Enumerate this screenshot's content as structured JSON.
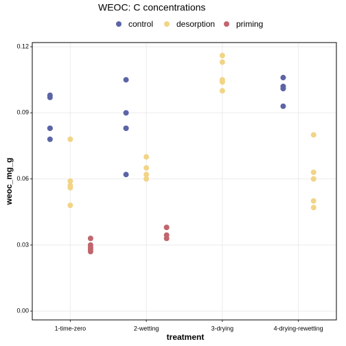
{
  "chart_data": {
    "type": "dotplot",
    "title": "WEOC: C concentrations",
    "x_label": "treatment",
    "y_label": "weoc_mg_g",
    "categories": [
      "1-time-zero",
      "2-wetting",
      "3-drying",
      "4-drying-rewetting"
    ],
    "ylim": [
      -0.004,
      0.1219
    ],
    "yticks": [
      {
        "value": 0,
        "label": "0.00"
      },
      0.03,
      0.06,
      0.09,
      0.12
    ],
    "grid": true,
    "legend": "top",
    "series": [
      {
        "name": "control",
        "color": "#5b64a6",
        "x": [
          "1-time-zero",
          "1-time-zero",
          "1-time-zero",
          "1-time-zero",
          "1-time-zero",
          "2-wetting",
          "2-wetting",
          "2-wetting",
          "2-wetting",
          "2-wetting",
          "4-drying-rewetting",
          "4-drying-rewetting",
          "4-drying-rewetting",
          "4-drying-rewetting"
        ],
        "values": [
          0.098,
          0.097,
          0.083,
          0.083,
          0.078,
          0.105,
          0.09,
          0.083,
          0.083,
          0.062,
          0.106,
          0.102,
          0.101,
          0.093
        ]
      },
      {
        "name": "desorption",
        "color": "#f2d486",
        "x": [
          "1-time-zero",
          "1-time-zero",
          "1-time-zero",
          "1-time-zero",
          "1-time-zero",
          "2-wetting",
          "2-wetting",
          "2-wetting",
          "2-wetting",
          "3-drying",
          "3-drying",
          "3-drying",
          "3-drying",
          "3-drying",
          "4-drying-rewetting",
          "4-drying-rewetting",
          "4-drying-rewetting",
          "4-drying-rewetting",
          "4-drying-rewetting"
        ],
        "values": [
          0.078,
          0.059,
          0.057,
          0.056,
          0.048,
          0.07,
          0.065,
          0.062,
          0.06,
          0.116,
          0.113,
          0.105,
          0.104,
          0.1,
          0.08,
          0.063,
          0.06,
          0.05,
          0.047
        ]
      },
      {
        "name": "priming",
        "color": "#c0666e",
        "x": [
          "1-time-zero",
          "1-time-zero",
          "1-time-zero",
          "1-time-zero",
          "1-time-zero",
          "2-wetting",
          "2-wetting",
          "2-wetting",
          "2-wetting"
        ],
        "values": [
          0.033,
          0.03,
          0.029,
          0.028,
          0.027,
          0.038,
          0.038,
          0.0345,
          0.033
        ]
      }
    ]
  }
}
